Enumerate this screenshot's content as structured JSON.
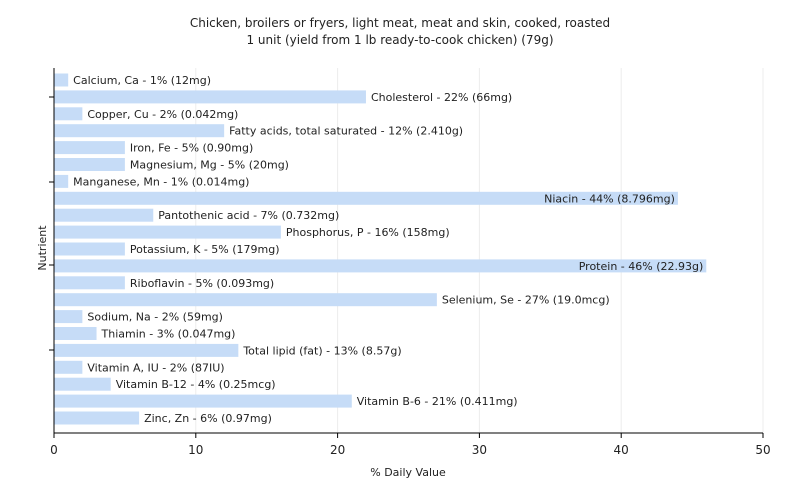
{
  "chart_data": {
    "type": "bar",
    "orientation": "horizontal",
    "title": "Chicken, broilers or fryers, light meat, meat and skin, cooked, roasted",
    "subtitle": "1 unit (yield from 1 lb ready-to-cook chicken) (79g)",
    "xlabel": "% Daily Value",
    "ylabel": "Nutrient",
    "xlim": [
      0,
      50
    ],
    "xticks": [
      0,
      10,
      20,
      30,
      40,
      50
    ],
    "grid": true,
    "bar_color": "#c6dcf7",
    "categories": [
      "Calcium, Ca - 1% (12mg)",
      "Cholesterol - 22% (66mg)",
      "Copper, Cu - 2% (0.042mg)",
      "Fatty acids, total saturated - 12% (2.410g)",
      "Iron, Fe - 5% (0.90mg)",
      "Magnesium, Mg - 5% (20mg)",
      "Manganese, Mn - 1% (0.014mg)",
      "Niacin - 44% (8.796mg)",
      "Pantothenic acid - 7% (0.732mg)",
      "Phosphorus, P - 16% (158mg)",
      "Potassium, K - 5% (179mg)",
      "Protein - 46% (22.93g)",
      "Riboflavin - 5% (0.093mg)",
      "Selenium, Se - 27% (19.0mcg)",
      "Sodium, Na - 2% (59mg)",
      "Thiamin - 3% (0.047mg)",
      "Total lipid (fat) - 13% (8.57g)",
      "Vitamin A, IU - 2% (87IU)",
      "Vitamin B-12 - 4% (0.25mcg)",
      "Vitamin B-6 - 21% (0.411mg)",
      "Zinc, Zn - 6% (0.97mg)"
    ],
    "values": [
      1,
      22,
      2,
      12,
      5,
      5,
      1,
      44,
      7,
      16,
      5,
      46,
      5,
      27,
      2,
      3,
      13,
      2,
      4,
      21,
      6
    ]
  }
}
